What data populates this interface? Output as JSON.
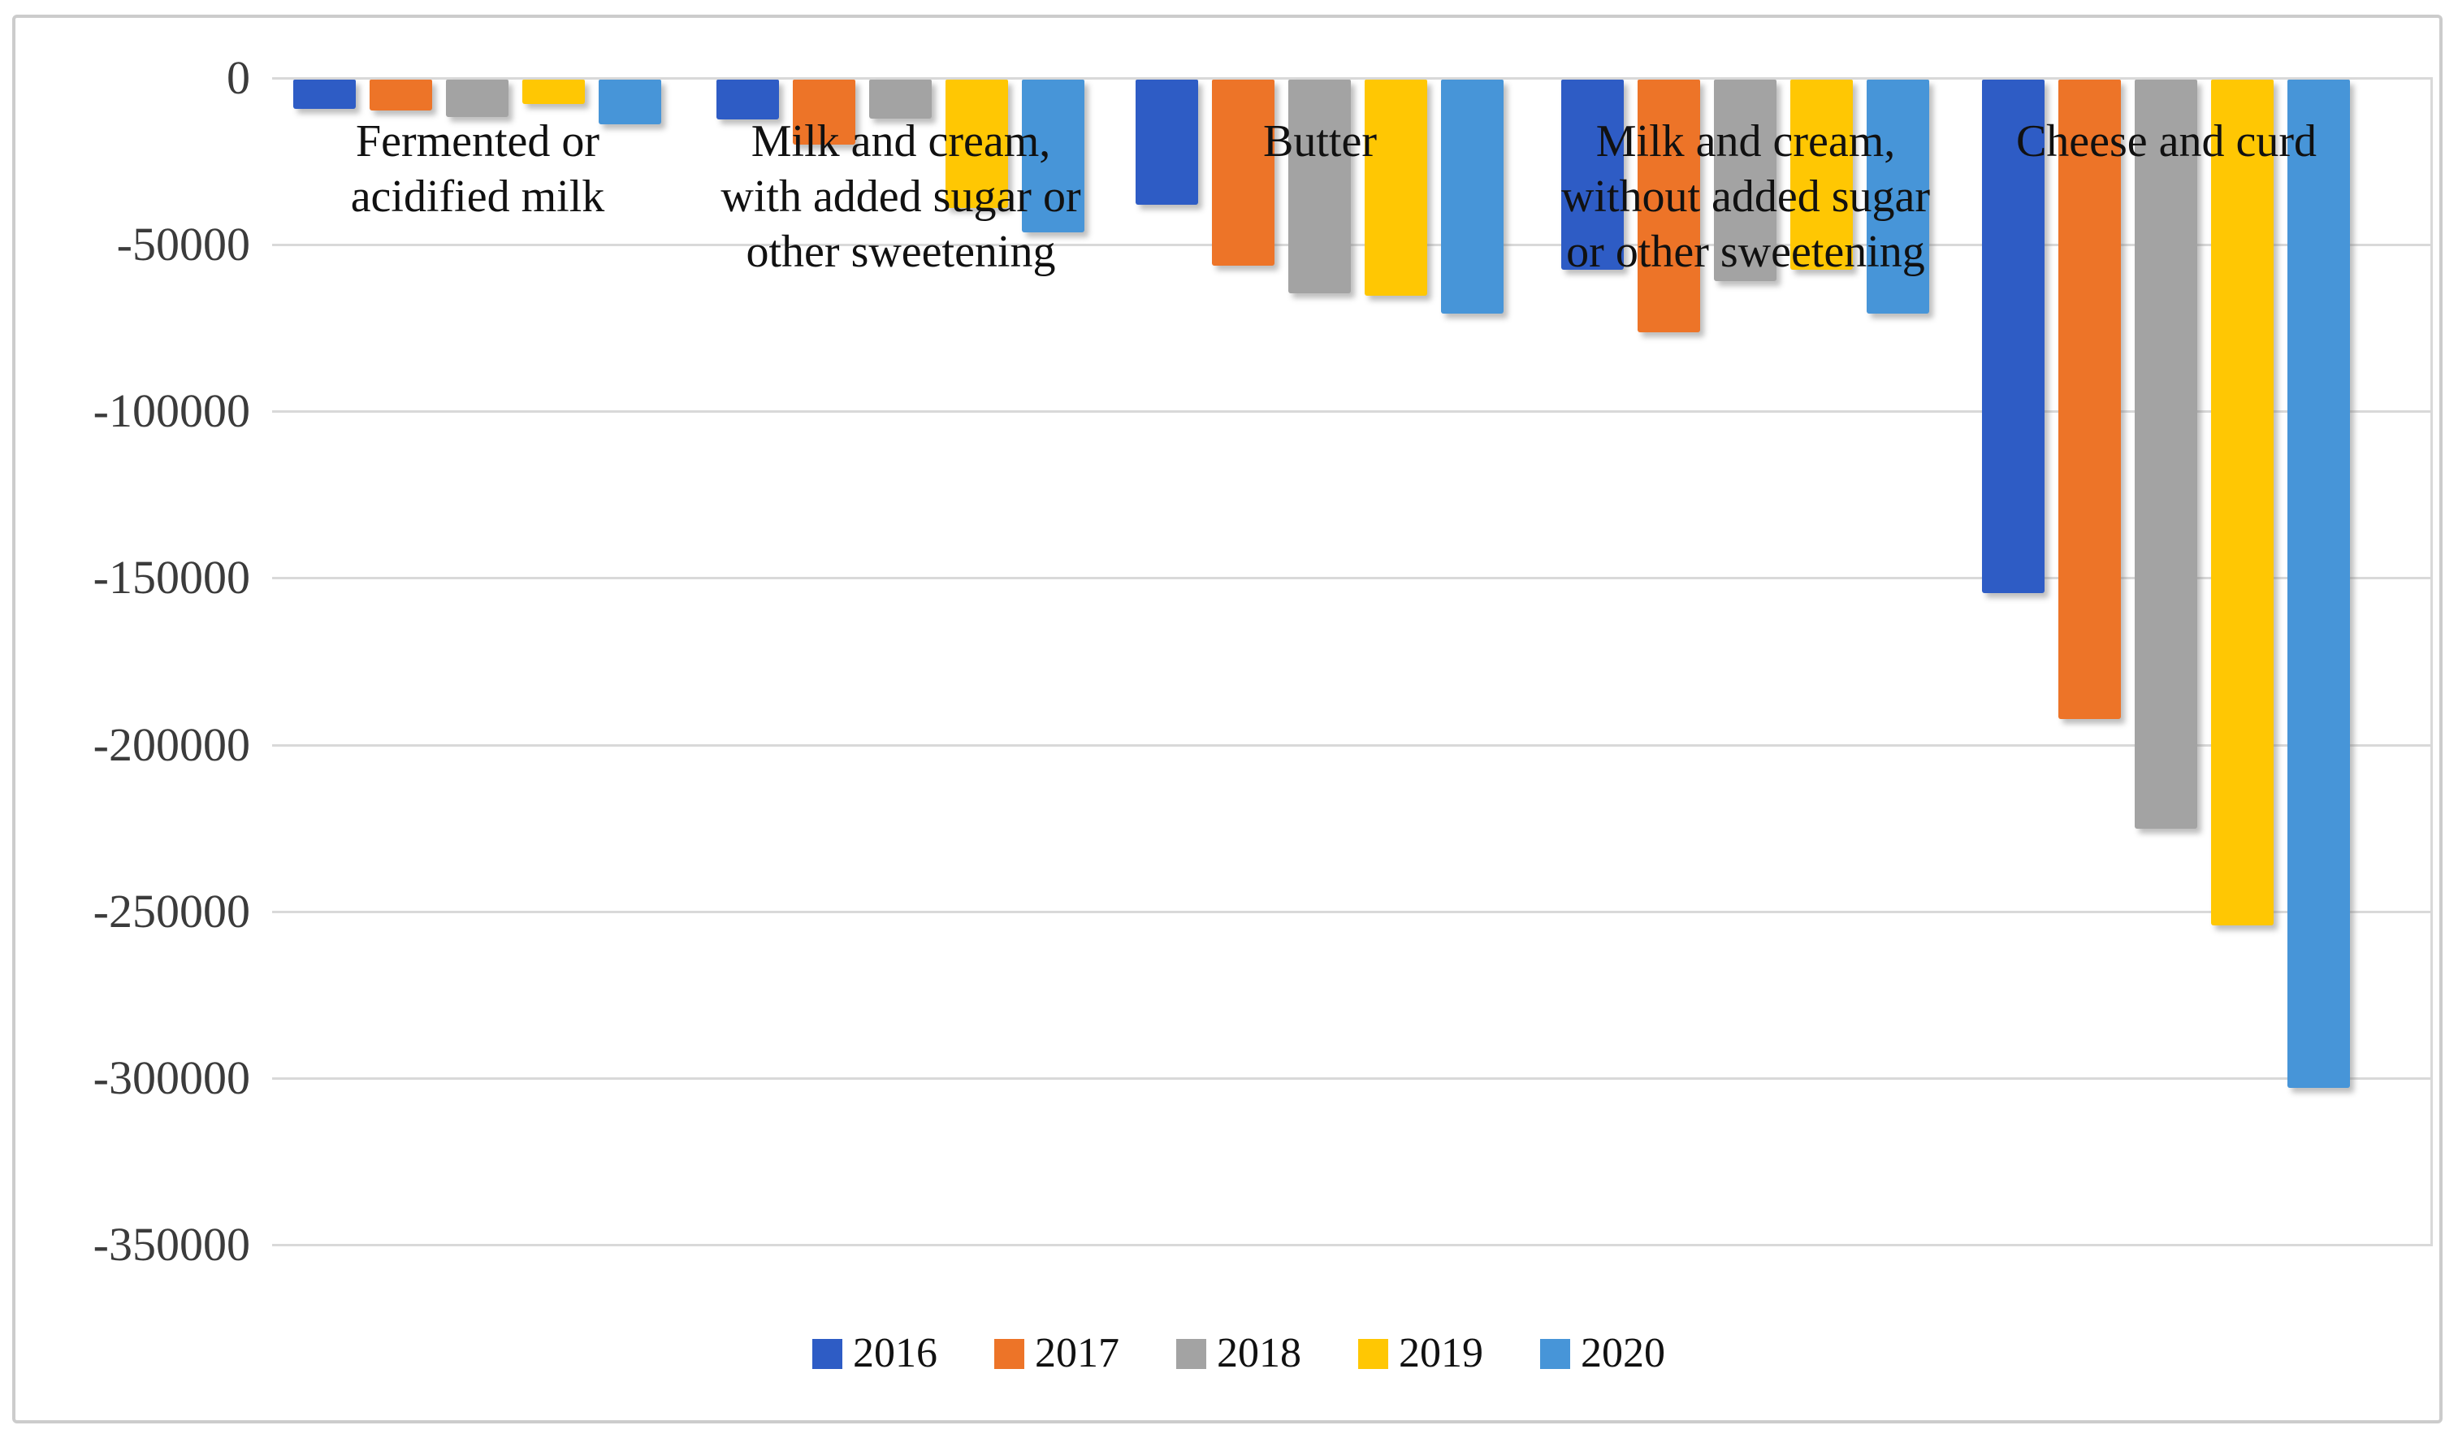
{
  "figure": {
    "background_color": "#ffffff",
    "border_color": "#cccccc",
    "gridline_color": "#d9d9d9",
    "tick_label_color": "#3b3b3b",
    "category_label_color": "#111111"
  },
  "chart_data": {
    "type": "bar",
    "orientation": "vertical-negative",
    "title": "",
    "xlabel": "",
    "ylabel": "",
    "ylim": [
      -350000,
      0
    ],
    "ytick_interval": 50000,
    "ytick_labels": [
      "0",
      "-50000",
      "-100000",
      "-150000",
      "-200000",
      "-250000",
      "-300000",
      "-350000"
    ],
    "grid": true,
    "legend_position": "bottom-center",
    "categories": [
      "Fermented or acidified milk",
      "Milk and cream, with added sugar or other sweetening",
      "Butter",
      "Milk and cream, without added sugar or other sweetening",
      "Cheese and curd"
    ],
    "category_label_lines": [
      [
        "Fermented or",
        "acidified milk"
      ],
      [
        "Milk and cream,",
        "with added sugar or",
        "other sweetening"
      ],
      [
        "Butter"
      ],
      [
        "Milk and cream,",
        "without added sugar",
        "or other sweetening"
      ],
      [
        "Cheese and curd"
      ]
    ],
    "series": [
      {
        "name": "2016",
        "color": "#2e5cc5",
        "values": [
          -9300,
          -12500,
          -38100,
          -57600,
          -154500
        ]
      },
      {
        "name": "2017",
        "color": "#ed7428",
        "values": [
          -9800,
          -19900,
          -56400,
          -76400,
          -192400
        ]
      },
      {
        "name": "2018",
        "color": "#a3a3a3",
        "values": [
          -11700,
          -12300,
          -64700,
          -61000,
          -225300
        ]
      },
      {
        "name": "2019",
        "color": "#ffc703",
        "values": [
          -7900,
          -39100,
          -65400,
          -57400,
          -254100
        ]
      },
      {
        "name": "2020",
        "color": "#4795d8",
        "values": [
          -13900,
          -46400,
          -70800,
          -70800,
          -303000
        ]
      }
    ]
  }
}
